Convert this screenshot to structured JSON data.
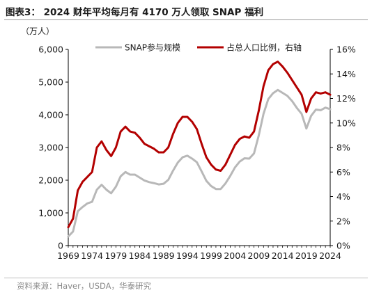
{
  "header": {
    "title": "图表3：  2024 财年平均每月有 4170 万人领取 SNAP 福利"
  },
  "footer": {
    "source": "资料来源：Haver，USDA，华泰研究"
  },
  "chart_data": {
    "type": "line",
    "unit_label": "（万人）",
    "x": [
      1969,
      1970,
      1971,
      1972,
      1973,
      1974,
      1975,
      1976,
      1977,
      1978,
      1979,
      1980,
      1981,
      1982,
      1983,
      1984,
      1985,
      1986,
      1987,
      1988,
      1989,
      1990,
      1991,
      1992,
      1993,
      1994,
      1995,
      1996,
      1997,
      1998,
      1999,
      2000,
      2001,
      2002,
      2003,
      2004,
      2005,
      2006,
      2007,
      2008,
      2009,
      2010,
      2011,
      2012,
      2013,
      2014,
      2015,
      2016,
      2017,
      2018,
      2019,
      2020,
      2021,
      2022,
      2023,
      2024
    ],
    "x_ticks": [
      "1969",
      "1974",
      "1979",
      "1984",
      "1989",
      "1994",
      "1999",
      "2004",
      "2009",
      "2014",
      "2019",
      "2024"
    ],
    "y_left": {
      "lim": [
        0,
        6000
      ],
      "ticks": [
        "0",
        "1,000",
        "2,000",
        "3,000",
        "4,000",
        "5,000",
        "6,000"
      ]
    },
    "y_right": {
      "lim": [
        0,
        16
      ],
      "ticks": [
        "0%",
        "2%",
        "4%",
        "6%",
        "8%",
        "10%",
        "12%",
        "14%",
        "16%"
      ]
    },
    "series": [
      {
        "name": "SNAP参与规模",
        "axis": "left",
        "color": "#b8b8b8",
        "values": [
          280,
          430,
          1050,
          1180,
          1290,
          1340,
          1710,
          1860,
          1710,
          1600,
          1800,
          2120,
          2250,
          2170,
          2170,
          2080,
          1990,
          1940,
          1910,
          1870,
          1890,
          2010,
          2290,
          2540,
          2700,
          2750,
          2660,
          2550,
          2270,
          1980,
          1820,
          1730,
          1730,
          1900,
          2130,
          2390,
          2570,
          2670,
          2660,
          2820,
          3370,
          4030,
          4480,
          4660,
          4760,
          4670,
          4580,
          4420,
          4210,
          4030,
          3580,
          3970,
          4160,
          4140,
          4220,
          4170
        ]
      },
      {
        "name": "占总人口比例，右轴",
        "axis": "right",
        "color": "#b30000",
        "values": [
          1.5,
          2.2,
          4.5,
          5.2,
          5.6,
          6.0,
          8.0,
          8.5,
          7.8,
          7.3,
          8.0,
          9.3,
          9.7,
          9.3,
          9.2,
          8.8,
          8.3,
          8.1,
          7.9,
          7.6,
          7.6,
          8.0,
          9.1,
          10.0,
          10.5,
          10.5,
          10.1,
          9.5,
          8.3,
          7.2,
          6.6,
          6.2,
          6.1,
          6.6,
          7.4,
          8.2,
          8.7,
          8.9,
          8.8,
          9.3,
          11.0,
          13.0,
          14.3,
          14.8,
          15.0,
          14.6,
          14.1,
          13.5,
          12.9,
          12.3,
          10.9,
          12.0,
          12.5,
          12.4,
          12.5,
          12.3
        ]
      }
    ],
    "legend_position": "top-center",
    "grid": false
  }
}
